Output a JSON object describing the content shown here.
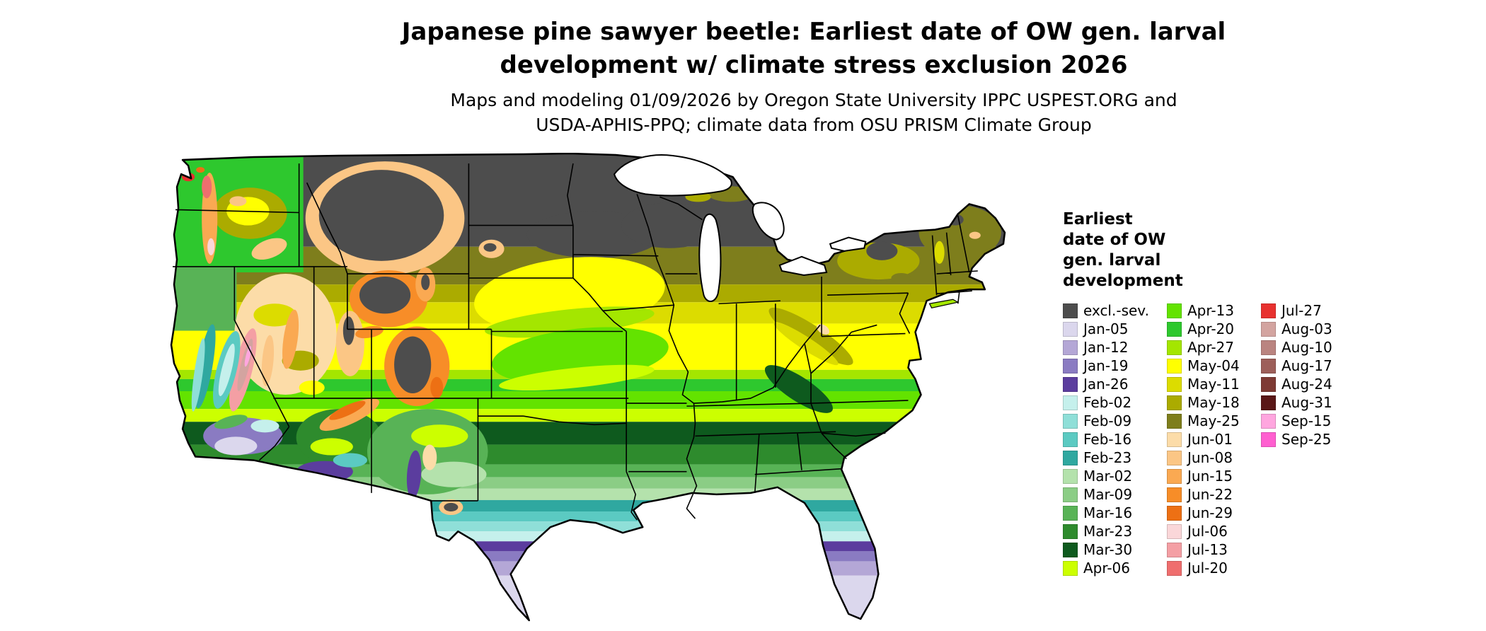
{
  "title": {
    "line1": "Japanese pine sawyer beetle: Earliest date of OW gen. larval",
    "line2": "development w/ climate stress exclusion 2026"
  },
  "subtitle": {
    "line1": "Maps and modeling 01/09/2026 by Oregon State University IPPC USPEST.ORG and",
    "line2": "USDA-APHIS-PPQ; climate data from OSU PRISM Climate Group"
  },
  "legend": {
    "title_lines": [
      "Earliest",
      "date of OW",
      "gen. larval",
      "development"
    ],
    "columns": [
      {
        "items": [
          {
            "label": "excl.-sev.",
            "color": "#4D4D4D"
          },
          {
            "label": "Jan-05",
            "color": "#DBD7ED"
          },
          {
            "label": "Jan-12",
            "color": "#B4A7D6"
          },
          {
            "label": "Jan-19",
            "color": "#8A7BC2"
          },
          {
            "label": "Jan-26",
            "color": "#5B3D9E"
          },
          {
            "label": "Feb-02",
            "color": "#C5F0EC"
          },
          {
            "label": "Feb-09",
            "color": "#8FDFD8"
          },
          {
            "label": "Feb-16",
            "color": "#5BCAC2"
          },
          {
            "label": "Feb-23",
            "color": "#2FA8A0"
          },
          {
            "label": "Mar-02",
            "color": "#B4E2AC"
          },
          {
            "label": "Mar-09",
            "color": "#8BCD85"
          },
          {
            "label": "Mar-16",
            "color": "#58B356"
          },
          {
            "label": "Mar-23",
            "color": "#2E8B2D"
          },
          {
            "label": "Mar-30",
            "color": "#0E5A1E"
          },
          {
            "label": "Apr-06",
            "color": "#CCFF00"
          }
        ]
      },
      {
        "items": [
          {
            "label": "Apr-13",
            "color": "#63E300"
          },
          {
            "label": "Apr-20",
            "color": "#2EC82E"
          },
          {
            "label": "Apr-27",
            "color": "#A4E600"
          },
          {
            "label": "May-04",
            "color": "#FFFF00"
          },
          {
            "label": "May-11",
            "color": "#DCDC00"
          },
          {
            "label": "May-18",
            "color": "#ABAB00"
          },
          {
            "label": "May-25",
            "color": "#7E7E1C"
          },
          {
            "label": "Jun-01",
            "color": "#FCDCA8"
          },
          {
            "label": "Jun-08",
            "color": "#FBC685"
          },
          {
            "label": "Jun-15",
            "color": "#FAA952"
          },
          {
            "label": "Jun-22",
            "color": "#F78D28"
          },
          {
            "label": "Jun-29",
            "color": "#ED7014"
          },
          {
            "label": "Jul-06",
            "color": "#FAD7D9"
          },
          {
            "label": "Jul-13",
            "color": "#F49FA4"
          },
          {
            "label": "Jul-20",
            "color": "#EF6E6E"
          }
        ]
      },
      {
        "items": [
          {
            "label": "Jul-27",
            "color": "#E8312F"
          },
          {
            "label": "Aug-03",
            "color": "#D3A4A0"
          },
          {
            "label": "Aug-10",
            "color": "#BA8480"
          },
          {
            "label": "Aug-17",
            "color": "#9D5F5A"
          },
          {
            "label": "Aug-24",
            "color": "#7E3A34"
          },
          {
            "label": "Aug-31",
            "color": "#5A1717"
          },
          {
            "label": "Sep-15",
            "color": "#FFA6DF"
          },
          {
            "label": "Sep-25",
            "color": "#FF5FD0"
          }
        ]
      }
    ]
  }
}
